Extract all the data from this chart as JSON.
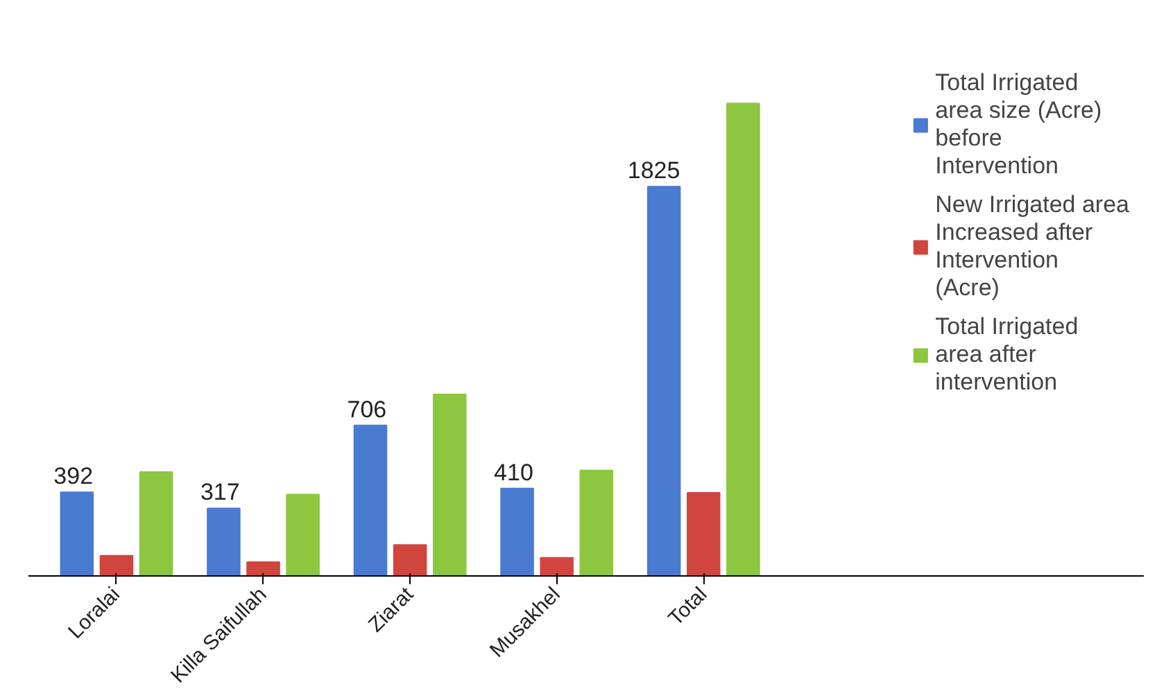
{
  "chart_data": {
    "type": "bar",
    "categories": [
      "Loralai",
      "Killa Saifullah",
      "Ziarat",
      "Musakhel",
      "Total"
    ],
    "series": [
      {
        "name": "Total Irrigated area size (Acre) before Intervention",
        "color": "#4a7bd0",
        "values": [
          392,
          317,
          706,
          410,
          1825
        ],
        "value_labels": [
          "392",
          "317",
          "706",
          "410",
          "1825"
        ]
      },
      {
        "name": "New Irrigated area Increased after Intervention (Acre)",
        "color": "#d0463f",
        "values": [
          95,
          65,
          145,
          85,
          390
        ]
      },
      {
        "name": "Total Irrigated area after intervention",
        "color": "#8dc63f",
        "values": [
          487,
          382,
          851,
          495,
          2215
        ]
      }
    ],
    "tick_labels": "x",
    "grid": false,
    "legend": "right"
  }
}
